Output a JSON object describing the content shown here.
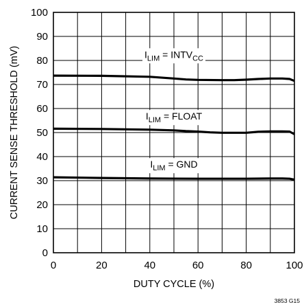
{
  "chart_data": {
    "type": "line",
    "xlabel": "DUTY CYCLE (%)",
    "ylabel": "CURRENT SENSE THRESHOLD (mV)",
    "xlim": [
      0,
      100
    ],
    "ylim": [
      0,
      100
    ],
    "xticks": [
      "0",
      "20",
      "40",
      "60",
      "80",
      "100"
    ],
    "yticks": [
      "0",
      "10",
      "20",
      "30",
      "40",
      "50",
      "60",
      "70",
      "80",
      "90",
      "100"
    ],
    "grid": true,
    "series": [
      {
        "label_main": "I",
        "label_sub": "LIM",
        "label_eq": " = INTV",
        "label_sub2": "CC",
        "x": [
          0,
          20,
          40,
          50,
          55,
          60,
          70,
          75,
          80,
          85,
          90,
          95,
          98,
          100
        ],
        "y": [
          73.7,
          73.6,
          73.2,
          72.5,
          72.1,
          71.9,
          71.8,
          71.8,
          72.0,
          72.3,
          72.5,
          72.5,
          72.3,
          71.5
        ]
      },
      {
        "label_main": "I",
        "label_sub": "LIM",
        "label_eq": " = FLOAT",
        "label_sub2": "",
        "x": [
          0,
          20,
          40,
          50,
          55,
          60,
          65,
          70,
          75,
          80,
          85,
          90,
          95,
          98,
          100
        ],
        "y": [
          51.6,
          51.5,
          51.2,
          50.9,
          50.6,
          50.4,
          50.1,
          49.9,
          49.9,
          49.9,
          50.3,
          50.5,
          50.5,
          50.4,
          49.3
        ]
      },
      {
        "label_main": "I",
        "label_sub": "LIM",
        "label_eq": " = GND",
        "label_sub2": "",
        "x": [
          0,
          20,
          40,
          60,
          80,
          90,
          95,
          98,
          100
        ],
        "y": [
          31.4,
          31.1,
          30.9,
          30.8,
          30.8,
          30.9,
          30.9,
          30.8,
          30.4
        ]
      }
    ],
    "figure_id": "3853 G15"
  }
}
